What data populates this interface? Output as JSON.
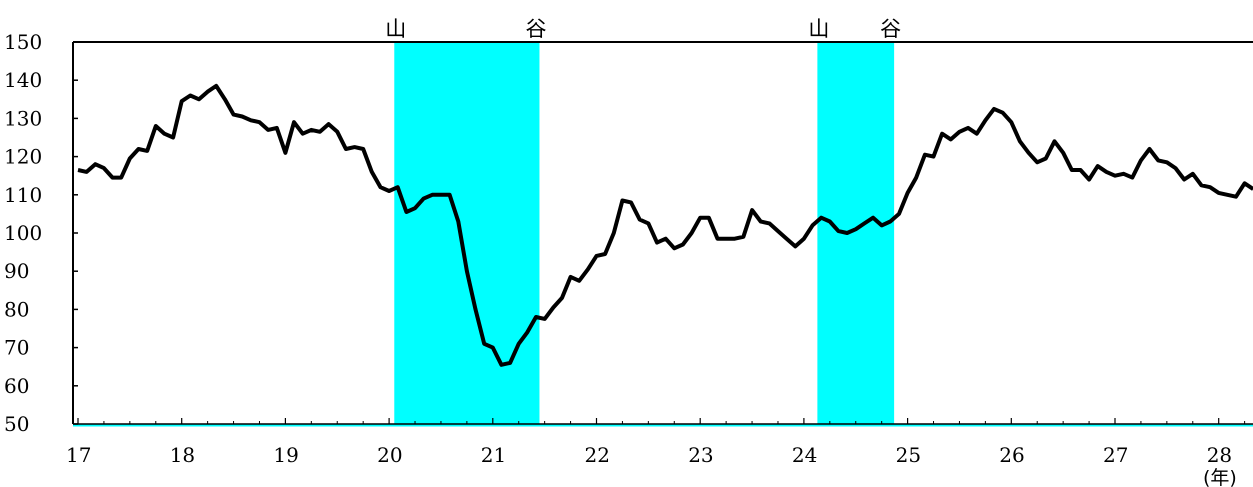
{
  "chart_data": {
    "type": "line",
    "title": "",
    "xlabel": "",
    "ylabel": "",
    "x_unit": "(年)",
    "ylim": [
      50,
      150
    ],
    "y_ticks": [
      50,
      60,
      70,
      80,
      90,
      100,
      110,
      120,
      130,
      140,
      150
    ],
    "xlim": [
      17,
      28.35
    ],
    "x_ticks": [
      17,
      18,
      19,
      20,
      21,
      22,
      23,
      24,
      25,
      26,
      27,
      28
    ],
    "grid": false,
    "line_color": "#000000",
    "shade_color": "#00ffff",
    "shaded_periods": [
      {
        "start": 20.05,
        "end": 21.45,
        "start_label": "山",
        "end_label": "谷"
      },
      {
        "start": 24.13,
        "end": 24.87,
        "start_label": "山",
        "end_label": "谷"
      }
    ],
    "series": [
      {
        "x": [
          17.0,
          17.083,
          17.167,
          17.25,
          17.333,
          17.417,
          17.5,
          17.583,
          17.667,
          17.75,
          17.833,
          17.917,
          18.0,
          18.083,
          18.167,
          18.25,
          18.333,
          18.417,
          18.5,
          18.583,
          18.667,
          18.75,
          18.833,
          18.917,
          19.0,
          19.083,
          19.167,
          19.25,
          19.333,
          19.417,
          19.5,
          19.583,
          19.667,
          19.75,
          19.833,
          19.917,
          20.0,
          20.083,
          20.167,
          20.25,
          20.333,
          20.417,
          20.5,
          20.583,
          20.667,
          20.75,
          20.833,
          20.917,
          21.0,
          21.083,
          21.167,
          21.25,
          21.333,
          21.417,
          21.5,
          21.583,
          21.667,
          21.75,
          21.833,
          21.917,
          22.0,
          22.083,
          22.167,
          22.25,
          22.333,
          22.417,
          22.5,
          22.583,
          22.667,
          22.75,
          22.833,
          22.917,
          23.0,
          23.083,
          23.167,
          23.25,
          23.333,
          23.417,
          23.5,
          23.583,
          23.667,
          23.75,
          23.833,
          23.917,
          24.0,
          24.083,
          24.167,
          24.25,
          24.333,
          24.417,
          24.5,
          24.583,
          24.667,
          24.75,
          24.833,
          24.917,
          25.0,
          25.083,
          25.167,
          25.25,
          25.333,
          25.417,
          25.5,
          25.583,
          25.667,
          25.75,
          25.833,
          25.917,
          26.0,
          26.083,
          26.167,
          26.25,
          26.333,
          26.417,
          26.5,
          26.583,
          26.667,
          26.75,
          26.833,
          26.917,
          27.0,
          27.083,
          27.167,
          27.25,
          27.333,
          27.417,
          27.5,
          27.583,
          27.667,
          27.75,
          27.833,
          27.917,
          28.0,
          28.083,
          28.167,
          28.25,
          28.333
        ],
        "values": [
          116.5,
          116,
          118,
          117,
          114.5,
          114.5,
          119.5,
          122,
          121.5,
          128,
          126,
          125,
          134.5,
          136,
          135,
          137,
          138.5,
          135,
          131,
          130.5,
          129.5,
          129,
          127,
          127.5,
          121,
          129,
          126,
          127,
          126.5,
          128.5,
          126.5,
          122,
          122.5,
          122,
          116,
          112,
          111,
          112,
          105.5,
          106.5,
          109,
          110,
          110,
          110,
          103,
          90,
          80,
          71,
          70,
          65.5,
          66,
          71,
          74,
          78,
          77.5,
          80.5,
          83,
          88.5,
          87.5,
          90.5,
          94,
          94.5,
          100,
          108.5,
          108,
          103.5,
          102.5,
          97.5,
          98.5,
          96,
          97,
          100,
          104,
          104,
          98.5,
          98.5,
          98.5,
          99,
          106,
          103,
          102.5,
          100.5,
          98.5,
          96.5,
          98.5,
          102,
          104,
          103,
          100.5,
          100,
          101,
          102.5,
          104,
          102,
          103,
          105,
          110.5,
          114.5,
          120.5,
          120,
          126,
          124.5,
          126.5,
          127.5,
          126,
          129.5,
          132.5,
          131.5,
          129,
          124,
          121,
          118.5,
          119.5,
          124,
          121,
          116.5,
          116.5,
          114,
          117.5,
          116,
          115,
          115.5,
          114.5,
          119,
          122,
          119,
          118.5,
          117,
          114,
          115.5,
          112.5,
          112,
          110.5,
          110,
          109.5,
          113,
          111.5
        ]
      }
    ]
  }
}
